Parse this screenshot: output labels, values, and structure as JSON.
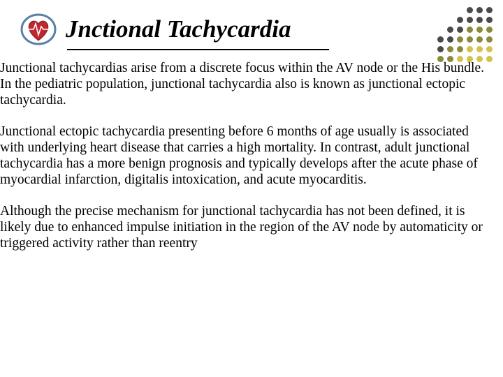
{
  "title": "Jnctional Tachycardia",
  "paragraphs": [
    "Junctional tachycardias arise from a discrete focus within the AV node or the His bundle. In the pediatric population, junctional tachycardia also is known as junctional ectopic tachycardia.",
    "Junctional ectopic tachycardia presenting before 6 months of age usually is associated with underlying heart disease that carries a high mortality. In contrast, adult junctional tachycardia has a more benign prognosis and typically develops after the acute phase of myocardial infarction, digitalis intoxication, and acute myocarditis.",
    " Although the precise mechanism for junctional tachycardia has not been defined, it is likely due to enhanced impulse initiation in the region of the AV node by automaticity or triggered activity rather than reentry"
  ],
  "logo": {
    "outer_ring": "#5b7fa6",
    "heart_main": "#c1272d",
    "heart_shadow": "#7a1b1f",
    "ecg_line": "#ffffff",
    "bg": "#ffffff"
  },
  "dot_grid": {
    "colors": {
      "empty": "transparent",
      "dark": "#4a4a4a",
      "olive": "#8a8a3a",
      "yellow": "#d4c24a"
    },
    "pattern": [
      [
        "empty",
        "empty",
        "empty",
        "dark",
        "dark",
        "dark"
      ],
      [
        "empty",
        "empty",
        "dark",
        "dark",
        "dark",
        "dark"
      ],
      [
        "empty",
        "dark",
        "dark",
        "olive",
        "olive",
        "olive"
      ],
      [
        "dark",
        "dark",
        "olive",
        "olive",
        "olive",
        "olive"
      ],
      [
        "dark",
        "olive",
        "olive",
        "yellow",
        "yellow",
        "yellow"
      ],
      [
        "olive",
        "olive",
        "yellow",
        "yellow",
        "yellow",
        "yellow"
      ]
    ]
  },
  "colors": {
    "text": "#000000",
    "background": "#ffffff",
    "underline": "#000000"
  },
  "typography": {
    "title_fontsize": 35,
    "title_style": "italic bold",
    "body_fontsize": 19.5,
    "font_family": "Times New Roman"
  }
}
